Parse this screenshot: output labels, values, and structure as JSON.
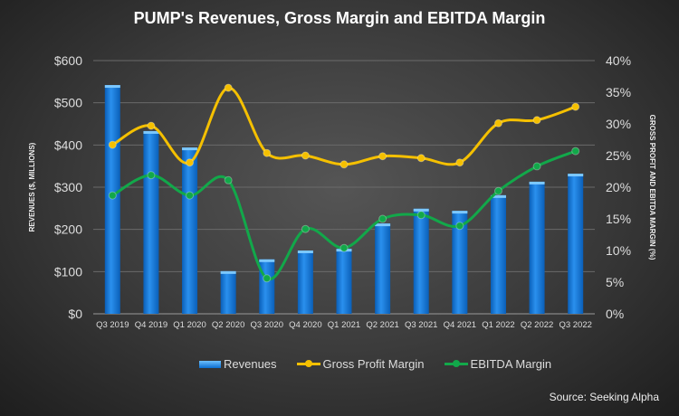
{
  "chart_data": {
    "type": "bar+line",
    "title": "PUMP's Revenues, Gross Margin and EBITDA Margin",
    "ylabel": "REVENUES ($, MILLIONS)",
    "y2label": "GROSS PROFIT AND EBITDA MARGIN (%)",
    "ylim": [
      0,
      600
    ],
    "y2lim": [
      0,
      40
    ],
    "yticks": [
      "$0",
      "$100",
      "$200",
      "$300",
      "$400",
      "$500",
      "$600"
    ],
    "y2ticks": [
      "0%",
      "5%",
      "10%",
      "15%",
      "20%",
      "25%",
      "30%",
      "35%",
      "40%"
    ],
    "grid": true,
    "legend_position": "bottom",
    "categories": [
      "Q3 2019",
      "Q4 2019",
      "Q1 2020",
      "Q2 2020",
      "Q3 2020",
      "Q4 2020",
      "Q1 2021",
      "Q2 2021",
      "Q3 2021",
      "Q4 2021",
      "Q1 2022",
      "Q2 2022",
      "Q3 2022"
    ],
    "series": [
      {
        "name": "Revenues",
        "type": "bar",
        "axis": "left",
        "color": "#1a7fe0",
        "values": [
          542,
          433,
          394,
          101,
          129,
          150,
          154,
          214,
          249,
          244,
          281,
          313,
          332
        ]
      },
      {
        "name": "Gross Profit Margin",
        "type": "line",
        "axis": "right",
        "color": "#f5c000",
        "values": [
          26.7,
          29.7,
          23.9,
          35.7,
          25.4,
          25.0,
          23.6,
          24.9,
          24.6,
          23.9,
          30.1,
          30.6,
          32.7
        ]
      },
      {
        "name": "EBITDA Margin",
        "type": "line",
        "axis": "right",
        "color": "#12a84a",
        "values": [
          18.7,
          21.9,
          18.7,
          21.1,
          5.6,
          13.4,
          10.4,
          15.0,
          15.6,
          13.9,
          19.4,
          23.3,
          25.7
        ]
      }
    ]
  },
  "source": "Source: Seeking Alpha"
}
